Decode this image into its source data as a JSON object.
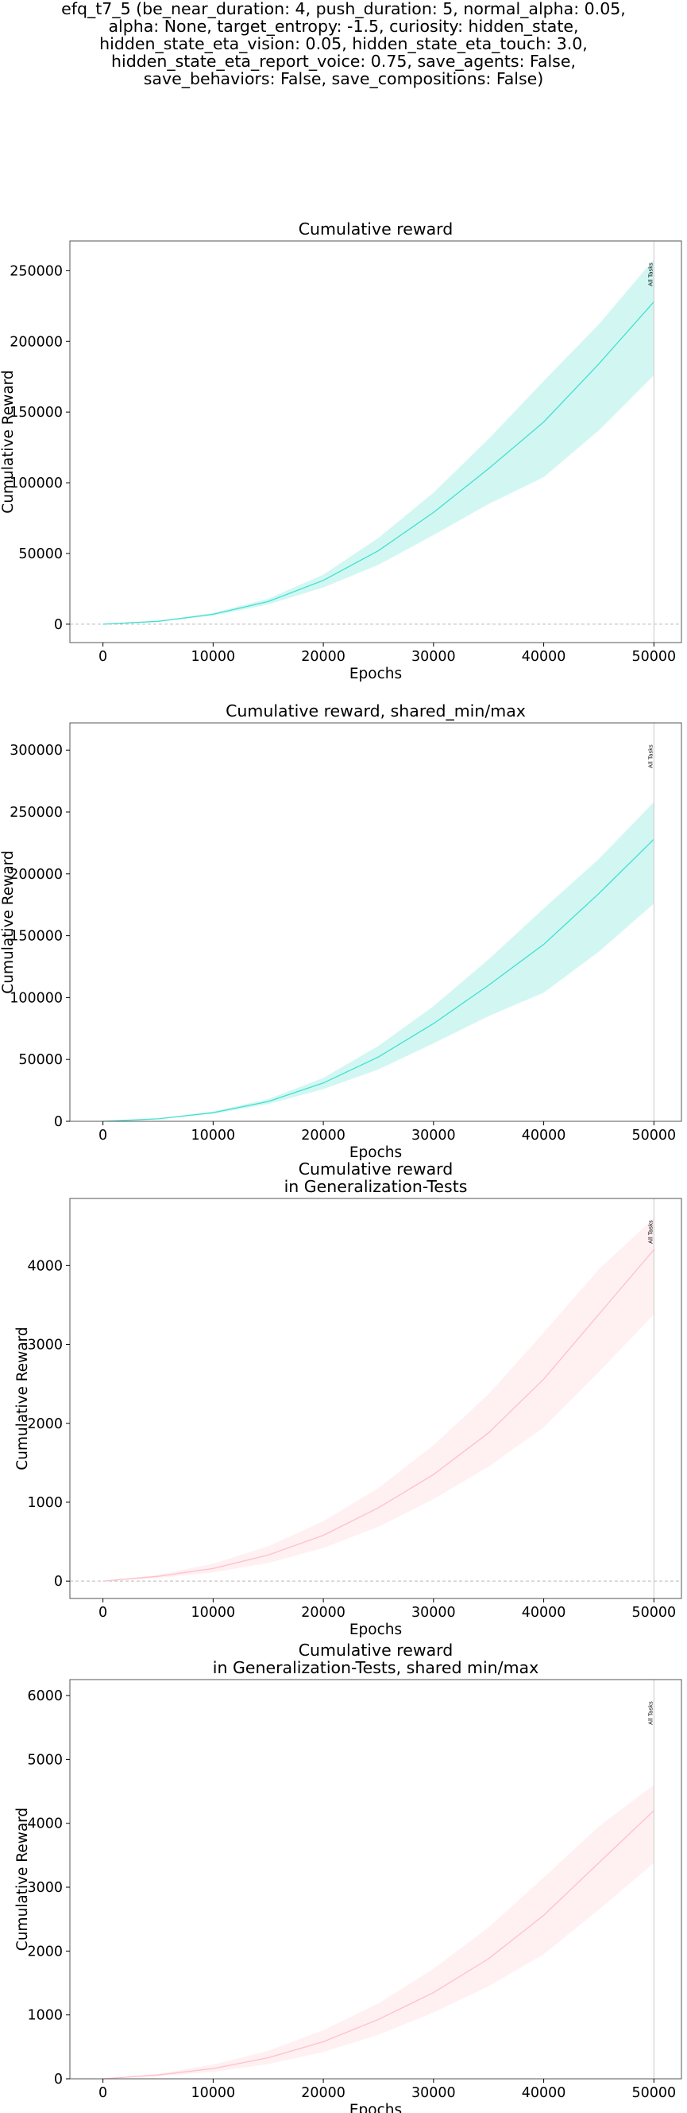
{
  "suptitle_lines": [
    "efq_t7_5 (be_near_duration: 4, push_duration: 5, normal_alpha: 0.05,",
    "alpha: None, target_entropy: -1.5, curiosity: hidden_state,",
    "hidden_state_eta_vision: 0.05, hidden_state_eta_touch: 3.0,",
    "hidden_state_eta_report_voice: 0.75, save_agents: False,",
    "save_behaviors: False, save_compositions: False)"
  ],
  "colors": {
    "turquoise_line": "#40e0d0",
    "turquoise_fill": "#d2f7f3",
    "pink_line": "#ffc0cb",
    "pink_fill": "#fff0f2",
    "vline": "#c8c8c8",
    "zero_line": "#bbbbbb",
    "frame": "#555555"
  },
  "chart_data": [
    {
      "type": "line",
      "title": [
        "Cumulative reward"
      ],
      "xlabel": "Epochs",
      "ylabel": "Cumulative Reward",
      "xlim": [
        -3000,
        52500
      ],
      "ylim": [
        -13000,
        271000
      ],
      "xticks": [
        0,
        10000,
        20000,
        30000,
        40000,
        50000
      ],
      "yticks": [
        0,
        50000,
        100000,
        150000,
        200000,
        250000
      ],
      "zero_line": true,
      "color": "turquoise",
      "vline": {
        "x": 50000,
        "label": "All Tasks"
      },
      "series": [
        {
          "x": [
            0,
            5000,
            10000,
            15000,
            20000,
            25000,
            30000,
            35000,
            40000,
            45000,
            50000
          ],
          "y": [
            0,
            2000,
            7000,
            16000,
            31000,
            52000,
            79000,
            110000,
            143000,
            184000,
            228000
          ],
          "lower": [
            0,
            1800,
            6000,
            14000,
            26000,
            42000,
            63000,
            85000,
            104000,
            137000,
            176000
          ],
          "upper": [
            0,
            2200,
            8000,
            18000,
            35000,
            61000,
            93000,
            131000,
            172000,
            212000,
            258000
          ]
        }
      ]
    },
    {
      "type": "line",
      "title": [
        "Cumulative reward, shared_min/max"
      ],
      "xlabel": "Epochs",
      "ylabel": "Cumulative Reward",
      "xlim": [
        -3000,
        52500
      ],
      "ylim": [
        0,
        322000
      ],
      "xticks": [
        0,
        10000,
        20000,
        30000,
        40000,
        50000
      ],
      "yticks": [
        0,
        50000,
        100000,
        150000,
        200000,
        250000,
        300000
      ],
      "zero_line": false,
      "color": "turquoise",
      "vline": {
        "x": 50000,
        "label": "All Tasks"
      },
      "series": [
        {
          "x": [
            0,
            5000,
            10000,
            15000,
            20000,
            25000,
            30000,
            35000,
            40000,
            45000,
            50000
          ],
          "y": [
            0,
            2000,
            7000,
            16000,
            31000,
            52000,
            79000,
            110000,
            143000,
            184000,
            228000
          ],
          "lower": [
            0,
            1800,
            6000,
            14000,
            26000,
            42000,
            63000,
            85000,
            104000,
            137000,
            176000
          ],
          "upper": [
            0,
            2200,
            8000,
            18000,
            35000,
            61000,
            93000,
            131000,
            172000,
            212000,
            258000
          ]
        }
      ]
    },
    {
      "type": "line",
      "title": [
        "Cumulative reward",
        "in Generalization-Tests"
      ],
      "xlabel": "Epochs",
      "ylabel": "Cumulative Reward",
      "xlim": [
        -3000,
        52500
      ],
      "ylim": [
        -220,
        4850
      ],
      "xticks": [
        0,
        10000,
        20000,
        30000,
        40000,
        50000
      ],
      "yticks": [
        0,
        1000,
        2000,
        3000,
        4000
      ],
      "zero_line": true,
      "color": "pink",
      "vline": {
        "x": 50000,
        "label": "All Tasks"
      },
      "series": [
        {
          "x": [
            0,
            5000,
            10000,
            15000,
            20000,
            25000,
            30000,
            35000,
            40000,
            45000,
            50000
          ],
          "y": [
            0,
            60,
            160,
            330,
            580,
            930,
            1350,
            1880,
            2560,
            3380,
            4200
          ],
          "lower": [
            0,
            40,
            110,
            230,
            420,
            690,
            1040,
            1450,
            1950,
            2650,
            3380
          ],
          "upper": [
            0,
            80,
            220,
            440,
            760,
            1180,
            1720,
            2370,
            3150,
            3950,
            4600
          ]
        }
      ]
    },
    {
      "type": "line",
      "title": [
        "Cumulative reward",
        "in Generalization-Tests, shared min/max"
      ],
      "xlabel": "Epochs",
      "ylabel": "Cumulative Reward",
      "xlim": [
        -3000,
        52500
      ],
      "ylim": [
        0,
        6250
      ],
      "xticks": [
        0,
        10000,
        20000,
        30000,
        40000,
        50000
      ],
      "yticks": [
        0,
        1000,
        2000,
        3000,
        4000,
        5000,
        6000
      ],
      "zero_line": false,
      "color": "pink",
      "vline": {
        "x": 50000,
        "label": "All Tasks"
      },
      "series": [
        {
          "x": [
            0,
            5000,
            10000,
            15000,
            20000,
            25000,
            30000,
            35000,
            40000,
            45000,
            50000
          ],
          "y": [
            0,
            60,
            160,
            330,
            580,
            930,
            1350,
            1880,
            2560,
            3380,
            4200
          ],
          "lower": [
            0,
            40,
            110,
            230,
            420,
            690,
            1040,
            1450,
            1950,
            2650,
            3380
          ],
          "upper": [
            0,
            80,
            220,
            440,
            760,
            1180,
            1720,
            2370,
            3150,
            3950,
            4600
          ]
        }
      ]
    }
  ]
}
